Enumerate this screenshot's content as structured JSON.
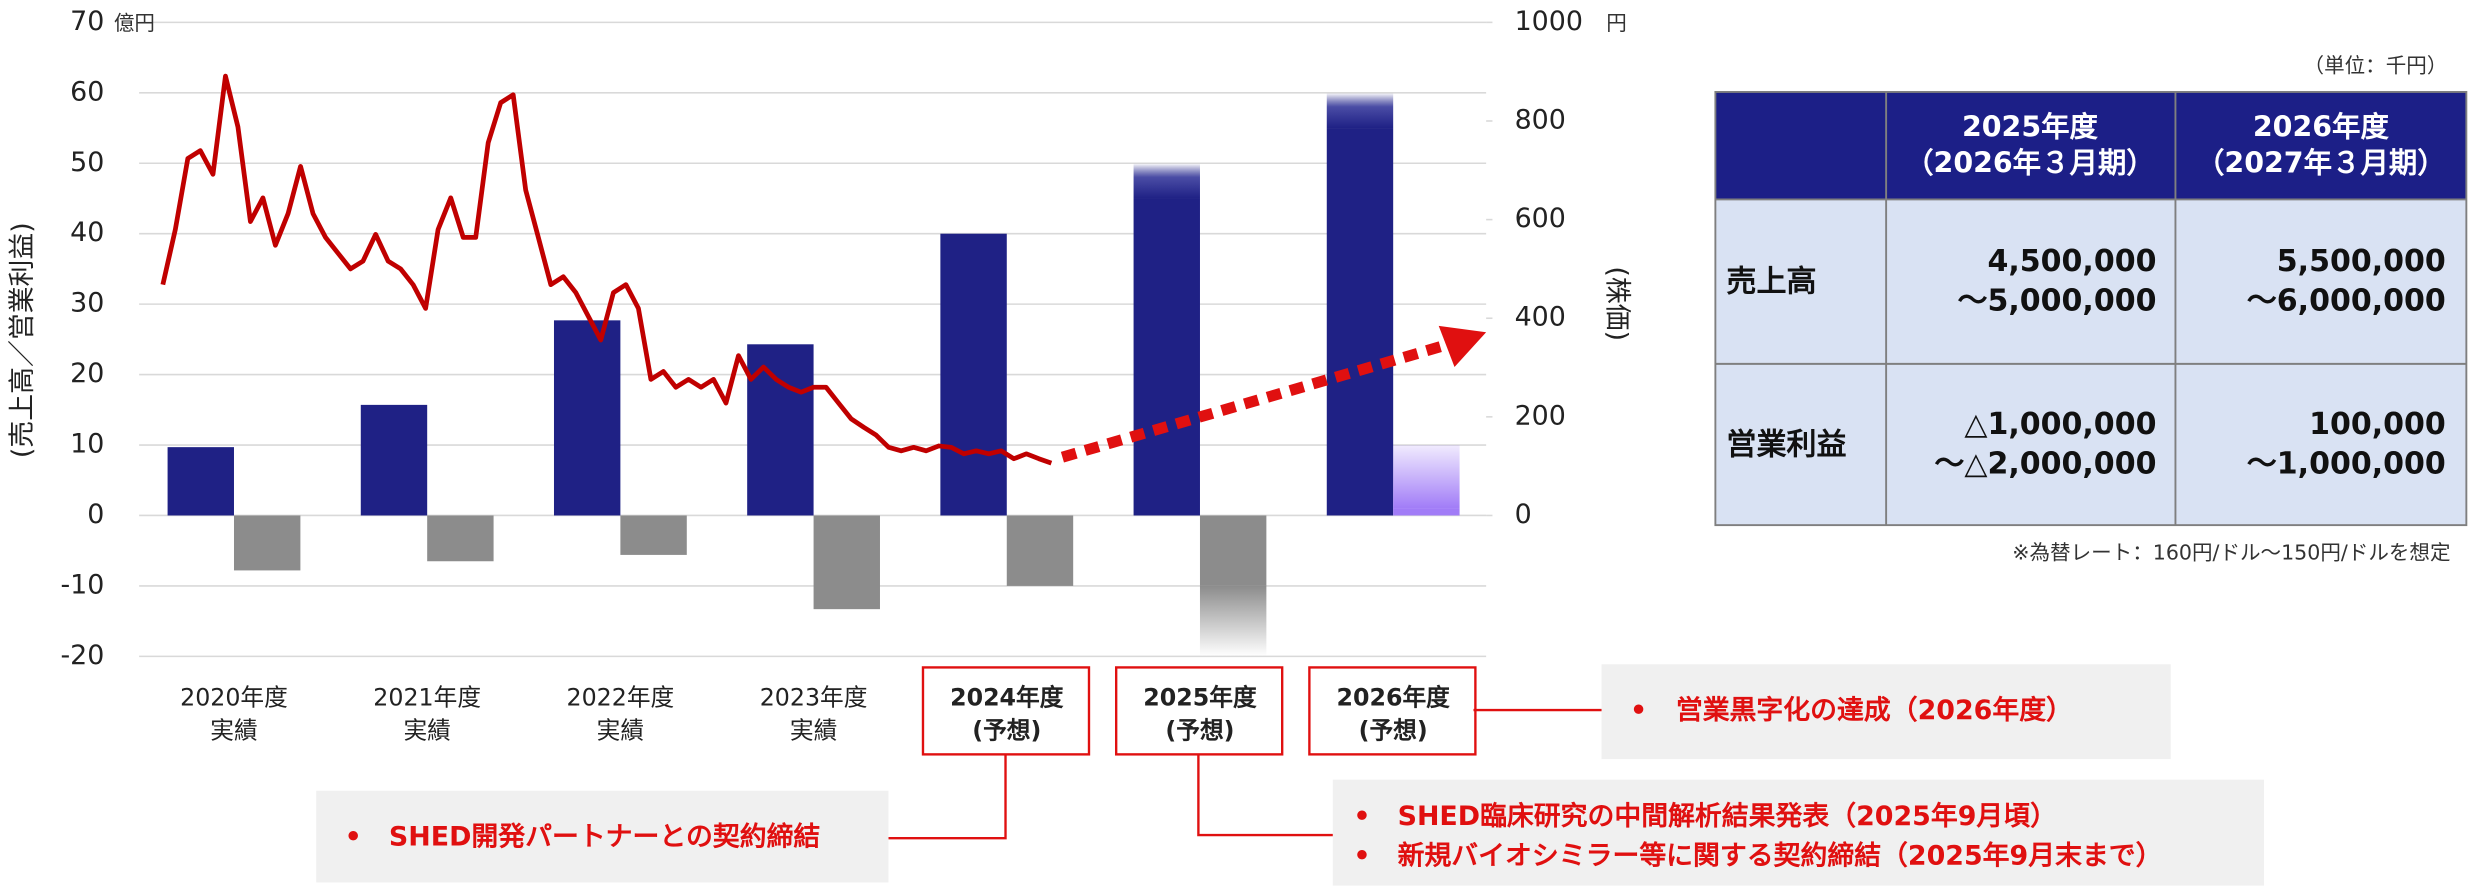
{
  "chart_data": {
    "type": "bar",
    "y_unit": "億円",
    "y2_unit": "円",
    "ylabel": "(売上高／営業利益)",
    "y2label": "(株価)",
    "categories": [
      [
        "2020年度",
        "実績"
      ],
      [
        "2021年度",
        "実績"
      ],
      [
        "2022年度",
        "実績"
      ],
      [
        "2023年度",
        "実績"
      ],
      [
        "2024年度",
        "(予想)"
      ],
      [
        "2025年度",
        "(予想)"
      ],
      [
        "2026年度",
        "(予想)"
      ]
    ],
    "ylim": [
      -20,
      70
    ],
    "yticks": [
      -20,
      -10,
      0,
      10,
      20,
      30,
      40,
      50,
      60,
      70
    ],
    "y2lim": [
      0,
      1000
    ],
    "y2ticks": [
      0,
      200,
      400,
      600,
      800,
      1000
    ],
    "grid": true,
    "series": [
      {
        "color": "#1f2185",
        "values": [
          9.7,
          15.7,
          27.7,
          24.3,
          40,
          45,
          55
        ],
        "range_high": [
          null,
          null,
          null,
          null,
          null,
          50,
          60
        ]
      },
      {
        "color": "#8c8c8c",
        "forecast_color": "#a17cf7",
        "values": [
          -7.8,
          -6.5,
          -5.6,
          -13.3,
          -10,
          -10,
          1
        ],
        "range_high": [
          null,
          null,
          null,
          null,
          null,
          -20,
          10
        ]
      }
    ],
    "line": {
      "axis": "y2",
      "color": "#c00000",
      "values": [
        468,
        580,
        724,
        740,
        692,
        891,
        788,
        596,
        644,
        548,
        612,
        708,
        612,
        564,
        532,
        500,
        516,
        570,
        516,
        500,
        468,
        420,
        580,
        644,
        564,
        564,
        756,
        837,
        853,
        660,
        564,
        468,
        484,
        452,
        404,
        356,
        452,
        468,
        420,
        276,
        292,
        260,
        276,
        260,
        276,
        228,
        324,
        276,
        301,
        276,
        260,
        250,
        260,
        260,
        228,
        196,
        179,
        163,
        138,
        131,
        138,
        131,
        141,
        138,
        125,
        131,
        125,
        131,
        115,
        125,
        115,
        106
      ]
    },
    "annotations": [
      [
        "SHED開発パートナーとの契約締結"
      ],
      [
        "SHED臨床研究の中間解析結果発表（2025年9月頃）",
        "新規バイオシミラー等に関する契約締結（2025年9月末まで）"
      ],
      [
        "営業黒字化の達成（2026年度）"
      ]
    ],
    "bullet": "•"
  },
  "table": {
    "unit": "（単位：千円）",
    "columns": [
      [
        "2025年度",
        "（2026年３月期）"
      ],
      [
        "2026年度",
        "（2027年３月期）"
      ]
    ],
    "rows": [
      [
        "売上高",
        [
          "4,500,000",
          "～5,000,000"
        ],
        [
          "5,500,000",
          "～6,000,000"
        ]
      ],
      [
        "営業利益",
        [
          "△1,000,000",
          "～△2,000,000"
        ],
        [
          "100,000",
          "～1,000,000"
        ]
      ]
    ],
    "note": "※為替レート：160円/ドル～150円/ドルを想定"
  }
}
